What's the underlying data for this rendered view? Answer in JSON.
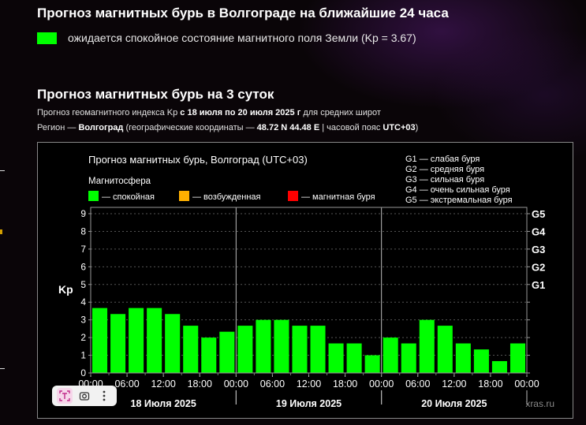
{
  "header": {
    "title": "Прогноз магнитных бурь в Волгограде на ближайшие 24 часа",
    "status": "ожидается спокойное состояние магнитного поля Земли (Kp = 3.67)",
    "status_color": "#00ff00"
  },
  "forecast": {
    "title": "Прогноз магнитных бурь на 3 суток",
    "line1_prefix": "Прогноз геомагнитного индекса Kp",
    "line1_range": "с 18 июля по 20 июля 2025 г",
    "line1_suffix": "для средних широт",
    "line2_prefix": "Регион —",
    "line2_city": "Волгоград",
    "line2_mid": "(географические координаты —",
    "line2_coords": "48.72 N 44.48 E",
    "line2_tz_prefix": "| часовой пояс",
    "line2_tz": "UTC+03",
    "line2_end": ")"
  },
  "chart_data": {
    "type": "bar",
    "title": "Прогноз магнитных бурь, Волгоград (UTC+03)",
    "legend_title": "Магнитосфера",
    "legend": [
      {
        "label": "— спокойная",
        "color": "#00ff00"
      },
      {
        "label": "— возбужденная",
        "color": "#ffb000"
      },
      {
        "label": "— магнитная буря",
        "color": "#ff0000"
      }
    ],
    "storm_legend": [
      "G1 — слабая буря",
      "G2 — средняя буря",
      "G3 — сильная буря",
      "G4 — очень сильная буря",
      "G5 — экстремальная буря"
    ],
    "ylabel": "Kp",
    "ylim": [
      0,
      9
    ],
    "yticks": [
      "0",
      "1",
      "2",
      "3",
      "4",
      "5",
      "6",
      "7",
      "8",
      "9"
    ],
    "g_levels": [
      {
        "label": "G1",
        "kp": 5
      },
      {
        "label": "G2",
        "kp": 6
      },
      {
        "label": "G3",
        "kp": 7
      },
      {
        "label": "G4",
        "kp": 8
      },
      {
        "label": "G5",
        "kp": 9
      }
    ],
    "xticks": [
      "00:00",
      "06:00",
      "12:00",
      "18:00",
      "00:00",
      "06:00",
      "12:00",
      "18:00",
      "00:00",
      "06:00",
      "12:00",
      "18:00",
      "00:00"
    ],
    "days": [
      "18 Июля 2025",
      "19 Июля 2025",
      "20 Июля 2025"
    ],
    "values": [
      3.67,
      3.33,
      3.67,
      3.67,
      3.33,
      2.67,
      2.0,
      2.33,
      2.67,
      3.0,
      3.0,
      2.67,
      2.67,
      1.67,
      1.67,
      1.0,
      2.0,
      1.67,
      3.0,
      2.67,
      1.67,
      1.33,
      0.67,
      1.67
    ],
    "bar_color": "#00ff00",
    "watermark": "xras.ru"
  },
  "toolbar": {
    "icons": [
      "text-capture-icon",
      "lens-icon",
      "more-icon"
    ]
  }
}
